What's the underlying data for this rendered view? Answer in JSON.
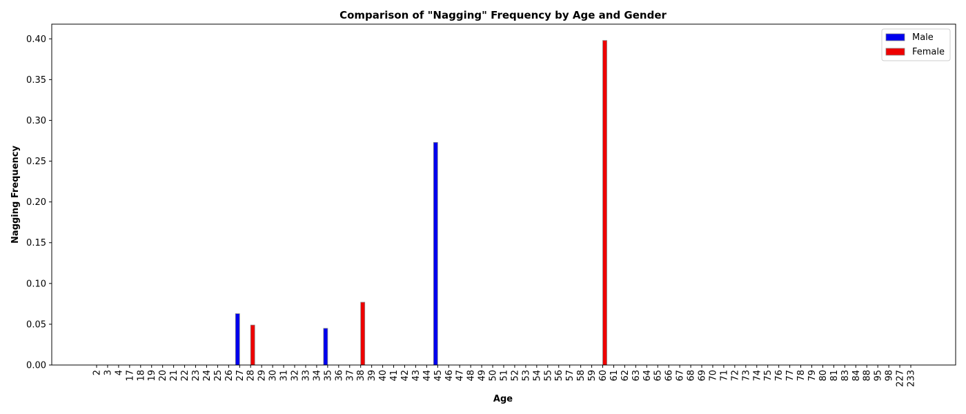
{
  "chart_data": {
    "type": "bar",
    "title": "Comparison of \"Nagging\" Frequency by Age and Gender",
    "xlabel": "Age",
    "ylabel": "Nagging Frequency",
    "ylim": [
      0,
      0.418
    ],
    "yticks": [
      "0.00",
      "0.05",
      "0.10",
      "0.15",
      "0.20",
      "0.25",
      "0.30",
      "0.35",
      "0.40"
    ],
    "ytick_values": [
      0,
      0.05,
      0.1,
      0.15,
      0.2,
      0.25,
      0.3,
      0.35,
      0.4
    ],
    "categories": [
      "2",
      "3",
      "4",
      "17",
      "18",
      "19",
      "20",
      "21",
      "22",
      "23",
      "24",
      "25",
      "26",
      "27",
      "28",
      "29",
      "30",
      "31",
      "32",
      "33",
      "34",
      "35",
      "36",
      "37",
      "38",
      "39",
      "40",
      "41",
      "42",
      "43",
      "44",
      "45",
      "46",
      "47",
      "48",
      "49",
      "50",
      "51",
      "52",
      "53",
      "54",
      "55",
      "56",
      "57",
      "58",
      "59",
      "60",
      "61",
      "62",
      "63",
      "64",
      "65",
      "66",
      "67",
      "68",
      "69",
      "70",
      "71",
      "72",
      "73",
      "74",
      "75",
      "76",
      "77",
      "78",
      "79",
      "80",
      "81",
      "83",
      "84",
      "88",
      "95",
      "98",
      "227",
      "233"
    ],
    "legend_position": "top-right",
    "series": [
      {
        "name": "Male",
        "color": "#0000ee",
        "values": [
          0,
          0,
          0,
          0,
          0,
          0,
          0,
          0,
          0,
          0,
          0,
          0,
          0,
          0.063,
          0,
          0,
          0,
          0,
          0,
          0,
          0,
          0.045,
          0,
          0,
          0,
          0,
          0,
          0,
          0,
          0,
          0,
          0.273,
          0,
          0,
          0,
          0,
          0,
          0,
          0,
          0,
          0,
          0,
          0,
          0,
          0,
          0,
          0,
          0,
          0,
          0,
          0,
          0,
          0,
          0,
          0,
          0,
          0,
          0,
          0,
          0,
          0,
          0,
          0,
          0,
          0,
          0,
          0,
          0,
          0,
          0,
          0,
          0,
          0,
          0,
          0
        ]
      },
      {
        "name": "Female",
        "color": "#ee0000",
        "values": [
          0,
          0,
          0,
          0,
          0,
          0,
          0,
          0,
          0,
          0,
          0,
          0,
          0,
          0,
          0.049,
          0,
          0,
          0,
          0,
          0,
          0,
          0,
          0,
          0,
          0.077,
          0,
          0,
          0,
          0,
          0,
          0,
          0,
          0,
          0,
          0,
          0,
          0,
          0,
          0,
          0,
          0,
          0,
          0,
          0,
          0,
          0,
          0.398,
          0,
          0,
          0,
          0,
          0,
          0,
          0,
          0,
          0,
          0,
          0,
          0,
          0,
          0,
          0,
          0,
          0,
          0,
          0,
          0,
          0,
          0,
          0,
          0,
          0,
          0,
          0,
          0
        ]
      }
    ]
  }
}
